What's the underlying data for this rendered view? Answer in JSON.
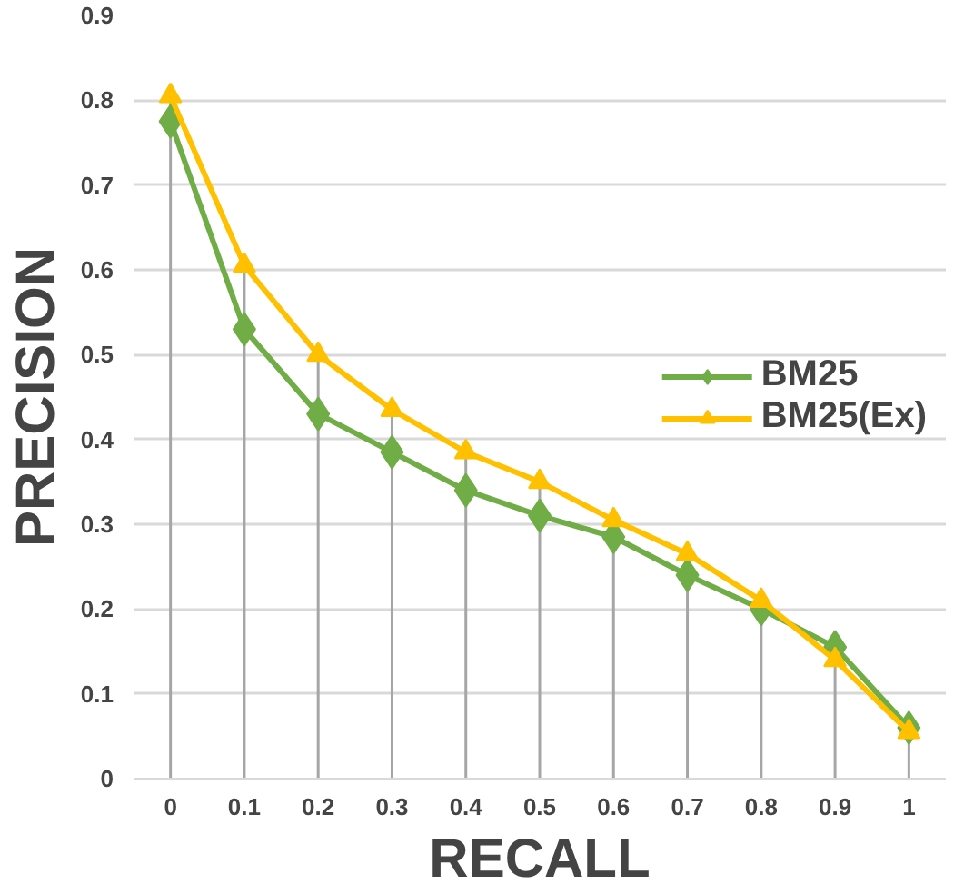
{
  "chart_data": {
    "type": "line",
    "xlabel": "RECALL",
    "ylabel": "PRECISION",
    "categories": [
      "0",
      "0.1",
      "0.2",
      "0.3",
      "0.4",
      "0.5",
      "0.6",
      "0.7",
      "0.8",
      "0.9",
      "1"
    ],
    "series": [
      {
        "name": "BM25",
        "color": "#70ad47",
        "marker": "diamond",
        "values": [
          0.775,
          0.53,
          0.43,
          0.385,
          0.34,
          0.31,
          0.285,
          0.24,
          0.2,
          0.155,
          0.06
        ],
        "errors": [
          null,
          null,
          null,
          null,
          null,
          null,
          null,
          null,
          null,
          [
            0,
            0.155
          ],
          [
            0,
            0.06
          ]
        ]
      },
      {
        "name": "BM25(Ex)",
        "color": "#ffc000",
        "marker": "triangle",
        "values": [
          0.805,
          0.605,
          0.5,
          0.435,
          0.385,
          0.35,
          0.305,
          0.265,
          0.21,
          0.14,
          0.055
        ],
        "errors": [
          [
            0,
            0.805
          ],
          [
            0,
            0.605
          ],
          [
            0,
            0.5
          ],
          [
            0,
            0.435
          ],
          [
            0,
            0.385
          ],
          [
            0,
            0.35
          ],
          [
            0,
            0.305
          ],
          [
            0,
            0.265
          ],
          [
            0,
            0.21
          ],
          null,
          null
        ]
      }
    ],
    "ylim": [
      0,
      0.9
    ],
    "yticks": [
      0,
      0.1,
      0.2,
      0.3,
      0.4,
      0.5,
      0.6,
      0.7,
      0.8,
      0.9
    ],
    "grid": "y",
    "legend": "right",
    "line_style": "solid"
  }
}
